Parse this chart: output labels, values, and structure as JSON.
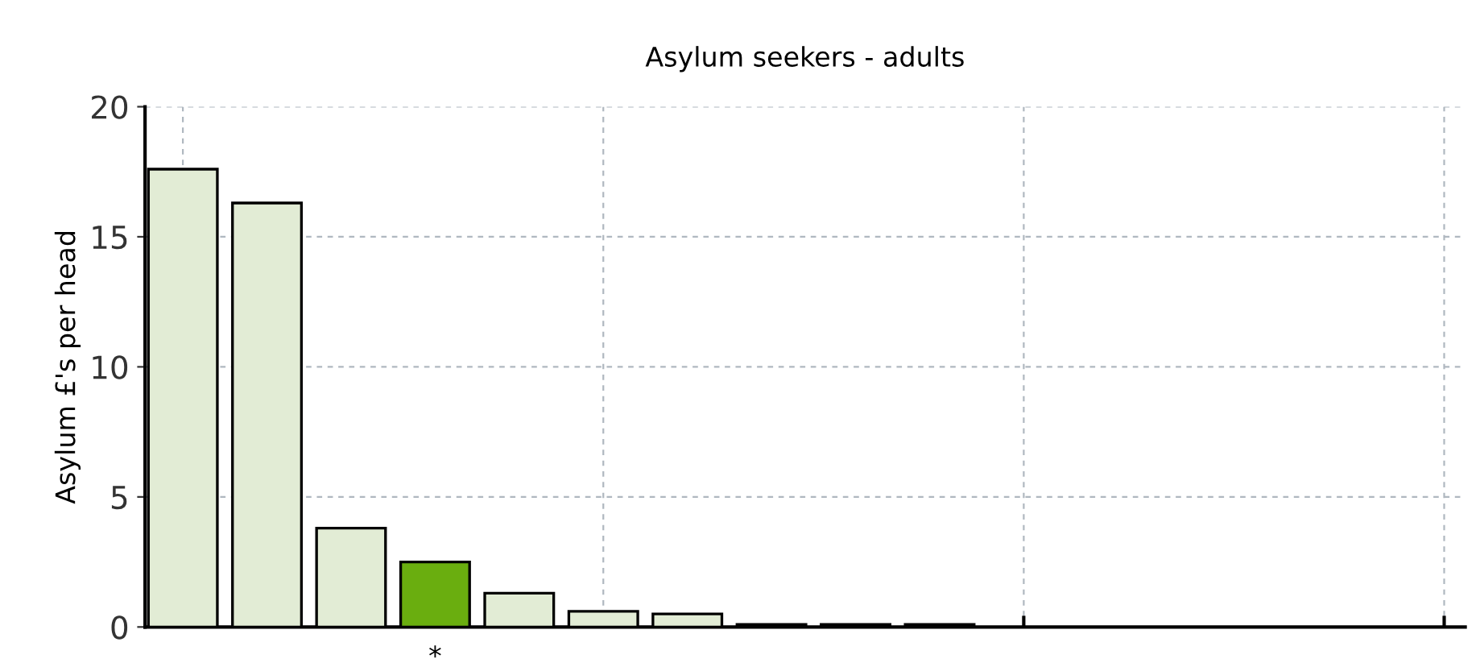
{
  "chart_data": {
    "type": "bar",
    "title": "Asylum seekers - adults",
    "ylabel": "Asylum £'s per head",
    "categories": [
      null,
      null,
      null,
      "*",
      null,
      null,
      null,
      null,
      null,
      null,
      null,
      null,
      null,
      null,
      null,
      null
    ],
    "values": [
      17.6,
      16.3,
      3.8,
      2.5,
      1.3,
      0.6,
      0.5,
      0.1,
      0.1,
      0.1,
      null,
      null,
      null,
      null,
      null,
      null
    ],
    "colors": [
      "#e2ecd5",
      "#e2ecd5",
      "#e2ecd5",
      "#6aae0f",
      "#e2ecd5",
      "#e2ecd5",
      "#e2ecd5",
      "#e2ecd5",
      "#e2ecd5",
      "#e2ecd5",
      "#e2ecd5",
      "#e2ecd5",
      "#e2ecd5",
      "#e2ecd5",
      "#e2ecd5",
      "#e2ecd5"
    ],
    "ylim": [
      0,
      20
    ],
    "yticks": [
      0,
      5,
      10,
      15,
      20
    ],
    "grid": true
  }
}
